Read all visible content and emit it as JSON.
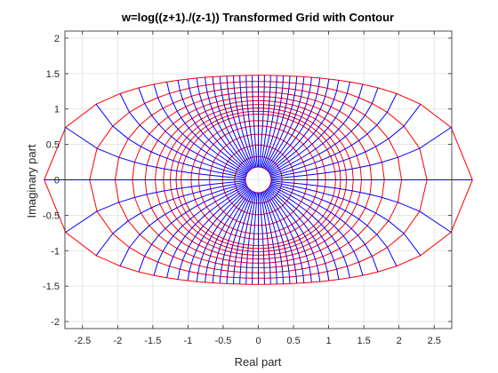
{
  "chart_data": {
    "type": "line",
    "title": "w=log((z+1)./(z-1)) Transformed Grid with Contour",
    "xlabel": "Real part",
    "ylabel": "Imaginary part",
    "xlim": [
      -2.75,
      2.75
    ],
    "ylim": [
      -2.1,
      2.1
    ],
    "xticks": [
      -2.5,
      -2,
      -1.5,
      -1,
      -0.5,
      0,
      0.5,
      1,
      1.5,
      2,
      2.5
    ],
    "yticks": [
      -2,
      -1.5,
      -1,
      -0.5,
      0,
      0.5,
      1,
      1.5,
      2
    ],
    "grid": true,
    "box": true,
    "series": [
      {
        "color": "#0000ff"
      },
      {
        "color": "#ff0000"
      }
    ]
  }
}
